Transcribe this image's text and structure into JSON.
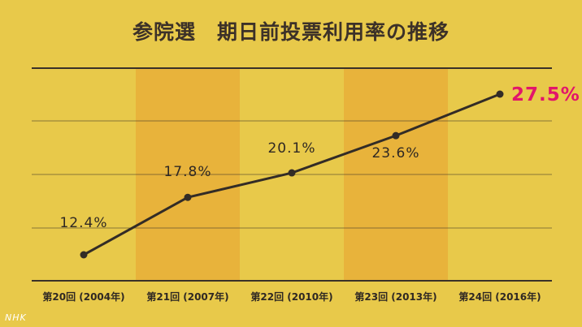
{
  "title": "参院選　期日前投票利用率の推移",
  "chart_data": {
    "type": "line",
    "categories": [
      "第20回 (2004年)",
      "第21回 (2007年)",
      "第22回 (2010年)",
      "第23回 (2013年)",
      "第24回 (2016年)"
    ],
    "series": [
      {
        "values": [
          12.4,
          17.8,
          20.1,
          23.6,
          27.5
        ]
      }
    ],
    "data_labels": [
      "12.4%",
      "17.8%",
      "20.1%",
      "23.6%",
      "27.5%"
    ],
    "highlight_label_color": "#e2156b",
    "line_color": "#332c26",
    "band_color": "#e8b33b",
    "grid": true
  },
  "logo": "NHK"
}
